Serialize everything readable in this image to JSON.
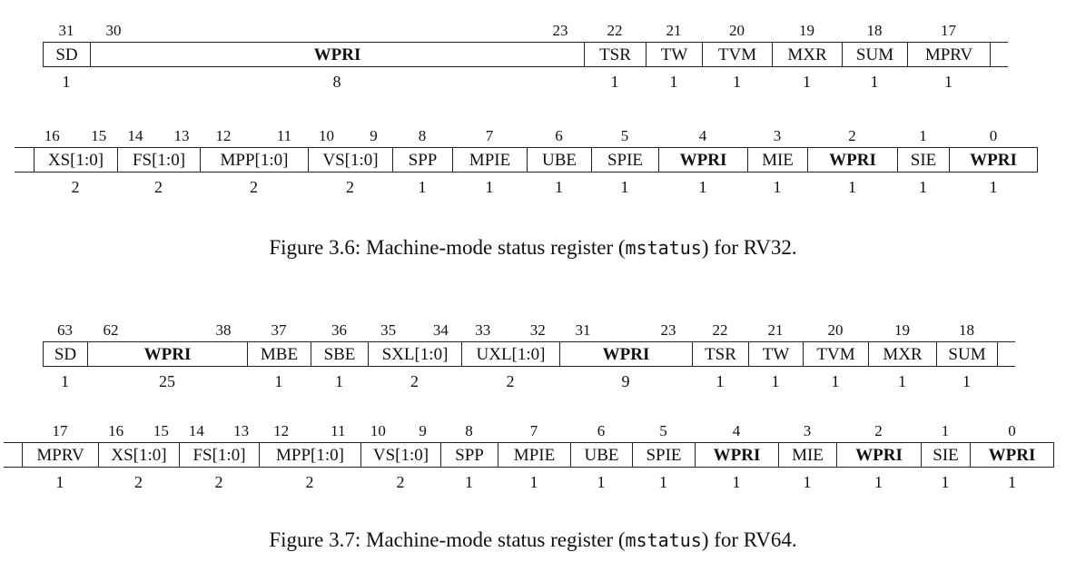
{
  "figures": [
    {
      "caption_prefix": "Figure 3.6: Machine-mode status register (",
      "caption_code": "mstatus",
      "caption_suffix": ") for RV32.",
      "rows": [
        {
          "fields": [
            {
              "label": "SD",
              "width": "1",
              "bits": [
                "31"
              ],
              "bold": false
            },
            {
              "label": "WPRI",
              "width": "8",
              "bits": [
                "30",
                "23"
              ],
              "bold": true
            },
            {
              "label": "TSR",
              "width": "1",
              "bits": [
                "22"
              ],
              "bold": false
            },
            {
              "label": "TW",
              "width": "1",
              "bits": [
                "21"
              ],
              "bold": false
            },
            {
              "label": "TVM",
              "width": "1",
              "bits": [
                "20"
              ],
              "bold": false
            },
            {
              "label": "MXR",
              "width": "1",
              "bits": [
                "19"
              ],
              "bold": false
            },
            {
              "label": "SUM",
              "width": "1",
              "bits": [
                "18"
              ],
              "bold": false
            },
            {
              "label": "MPRV",
              "width": "1",
              "bits": [
                "17"
              ],
              "bold": false
            }
          ]
        },
        {
          "fields": [
            {
              "label": "XS[1:0]",
              "width": "2",
              "bits": [
                "16",
                "15"
              ],
              "bold": false
            },
            {
              "label": "FS[1:0]",
              "width": "2",
              "bits": [
                "14",
                "13"
              ],
              "bold": false
            },
            {
              "label": "MPP[1:0]",
              "width": "2",
              "bits": [
                "12",
                "11"
              ],
              "bold": false
            },
            {
              "label": "VS[1:0]",
              "width": "2",
              "bits": [
                "10",
                "9"
              ],
              "bold": false
            },
            {
              "label": "SPP",
              "width": "1",
              "bits": [
                "8"
              ],
              "bold": false
            },
            {
              "label": "MPIE",
              "width": "1",
              "bits": [
                "7"
              ],
              "bold": false
            },
            {
              "label": "UBE",
              "width": "1",
              "bits": [
                "6"
              ],
              "bold": false
            },
            {
              "label": "SPIE",
              "width": "1",
              "bits": [
                "5"
              ],
              "bold": false
            },
            {
              "label": "WPRI",
              "width": "1",
              "bits": [
                "4"
              ],
              "bold": true
            },
            {
              "label": "MIE",
              "width": "1",
              "bits": [
                "3"
              ],
              "bold": false
            },
            {
              "label": "WPRI",
              "width": "1",
              "bits": [
                "2"
              ],
              "bold": true
            },
            {
              "label": "SIE",
              "width": "1",
              "bits": [
                "1"
              ],
              "bold": false
            },
            {
              "label": "WPRI",
              "width": "1",
              "bits": [
                "0"
              ],
              "bold": true
            }
          ]
        }
      ]
    },
    {
      "caption_prefix": "Figure 3.7: Machine-mode status register (",
      "caption_code": "mstatus",
      "caption_suffix": ") for RV64.",
      "rows": [
        {
          "fields": [
            {
              "label": "SD",
              "width": "1",
              "bits": [
                "63"
              ],
              "bold": false
            },
            {
              "label": "WPRI",
              "width": "25",
              "bits": [
                "62",
                "38"
              ],
              "bold": true
            },
            {
              "label": "MBE",
              "width": "1",
              "bits": [
                "37"
              ],
              "bold": false
            },
            {
              "label": "SBE",
              "width": "1",
              "bits": [
                "36"
              ],
              "bold": false
            },
            {
              "label": "SXL[1:0]",
              "width": "2",
              "bits": [
                "35",
                "34"
              ],
              "bold": false
            },
            {
              "label": "UXL[1:0]",
              "width": "2",
              "bits": [
                "33",
                "32"
              ],
              "bold": false
            },
            {
              "label": "WPRI",
              "width": "9",
              "bits": [
                "31",
                "23"
              ],
              "bold": true
            },
            {
              "label": "TSR",
              "width": "1",
              "bits": [
                "22"
              ],
              "bold": false
            },
            {
              "label": "TW",
              "width": "1",
              "bits": [
                "21"
              ],
              "bold": false
            },
            {
              "label": "TVM",
              "width": "1",
              "bits": [
                "20"
              ],
              "bold": false
            },
            {
              "label": "MXR",
              "width": "1",
              "bits": [
                "19"
              ],
              "bold": false
            },
            {
              "label": "SUM",
              "width": "1",
              "bits": [
                "18"
              ],
              "bold": false
            }
          ]
        },
        {
          "fields": [
            {
              "label": "MPRV",
              "width": "1",
              "bits": [
                "17"
              ],
              "bold": false
            },
            {
              "label": "XS[1:0]",
              "width": "2",
              "bits": [
                "16",
                "15"
              ],
              "bold": false
            },
            {
              "label": "FS[1:0]",
              "width": "2",
              "bits": [
                "14",
                "13"
              ],
              "bold": false
            },
            {
              "label": "MPP[1:0]",
              "width": "2",
              "bits": [
                "12",
                "11"
              ],
              "bold": false
            },
            {
              "label": "VS[1:0]",
              "width": "2",
              "bits": [
                "10",
                "9"
              ],
              "bold": false
            },
            {
              "label": "SPP",
              "width": "1",
              "bits": [
                "8"
              ],
              "bold": false
            },
            {
              "label": "MPIE",
              "width": "1",
              "bits": [
                "7"
              ],
              "bold": false
            },
            {
              "label": "UBE",
              "width": "1",
              "bits": [
                "6"
              ],
              "bold": false
            },
            {
              "label": "SPIE",
              "width": "1",
              "bits": [
                "5"
              ],
              "bold": false
            },
            {
              "label": "WPRI",
              "width": "1",
              "bits": [
                "4"
              ],
              "bold": true
            },
            {
              "label": "MIE",
              "width": "1",
              "bits": [
                "3"
              ],
              "bold": false
            },
            {
              "label": "WPRI",
              "width": "1",
              "bits": [
                "2"
              ],
              "bold": true
            },
            {
              "label": "SIE",
              "width": "1",
              "bits": [
                "1"
              ],
              "bold": false
            },
            {
              "label": "WPRI",
              "width": "1",
              "bits": [
                "0"
              ],
              "bold": true
            }
          ]
        }
      ]
    }
  ]
}
